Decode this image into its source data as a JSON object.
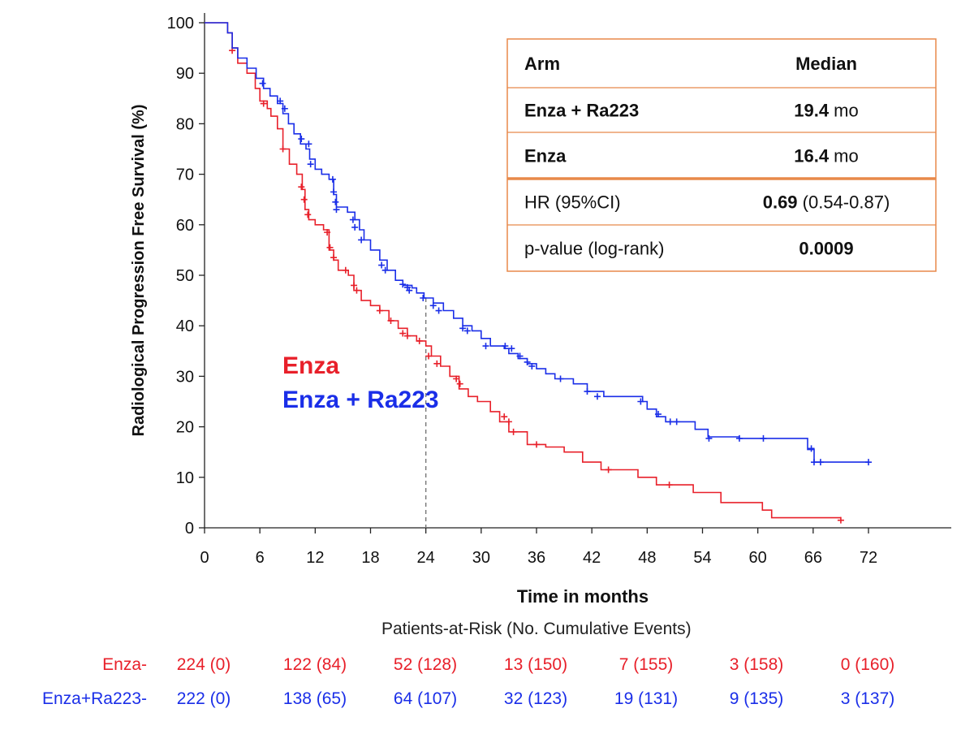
{
  "chart_data": {
    "type": "line",
    "subtype": "kaplan-meier",
    "ylabel": "Radiological Progression Free Survival (%)",
    "xlabel": "Time in months",
    "xlim": [
      0,
      72
    ],
    "ylim": [
      0,
      100
    ],
    "x_ticks": [
      "0",
      "6",
      "12",
      "18",
      "24",
      "30",
      "36",
      "42",
      "48",
      "54",
      "60",
      "66",
      "72"
    ],
    "y_ticks": [
      "0",
      "10",
      "20",
      "30",
      "40",
      "50",
      "60",
      "70",
      "80",
      "90",
      "100"
    ],
    "reference_line_x": 24,
    "series": [
      {
        "name": "Enza",
        "color": "#e8202a",
        "steps": [
          [
            0,
            100
          ],
          [
            2.5,
            98
          ],
          [
            3,
            95
          ],
          [
            3.6,
            92
          ],
          [
            4.6,
            90
          ],
          [
            5.5,
            87
          ],
          [
            6,
            84.5
          ],
          [
            6.8,
            83
          ],
          [
            7.2,
            81.5
          ],
          [
            7.9,
            79
          ],
          [
            8.5,
            75
          ],
          [
            9.2,
            72
          ],
          [
            10,
            70
          ],
          [
            10.6,
            67
          ],
          [
            10.9,
            63
          ],
          [
            11.3,
            61
          ],
          [
            12,
            60
          ],
          [
            12.9,
            59
          ],
          [
            13.5,
            55
          ],
          [
            14,
            53
          ],
          [
            14.5,
            51
          ],
          [
            15.6,
            50
          ],
          [
            16.2,
            47
          ],
          [
            17,
            45
          ],
          [
            18,
            44
          ],
          [
            19,
            43
          ],
          [
            20,
            41
          ],
          [
            21,
            39.5
          ],
          [
            22,
            38
          ],
          [
            23,
            37
          ],
          [
            24,
            36
          ],
          [
            24.6,
            34
          ],
          [
            25.6,
            32
          ],
          [
            26.6,
            30
          ],
          [
            27.6,
            27.5
          ],
          [
            28.6,
            26
          ],
          [
            29.6,
            25
          ],
          [
            31,
            23
          ],
          [
            32,
            21
          ],
          [
            33,
            19
          ],
          [
            35,
            16.5
          ],
          [
            37,
            16
          ],
          [
            39,
            15
          ],
          [
            41,
            13
          ],
          [
            43,
            11.5
          ],
          [
            47,
            10
          ],
          [
            49,
            8.5
          ],
          [
            53,
            7
          ],
          [
            56,
            5
          ],
          [
            60.5,
            3.5
          ],
          [
            61.5,
            2
          ],
          [
            69,
            2
          ]
        ],
        "censor_marks": [
          [
            3,
            94.5
          ],
          [
            6.4,
            84
          ],
          [
            8.5,
            75
          ],
          [
            10.5,
            67.5
          ],
          [
            10.8,
            65
          ],
          [
            11.2,
            62
          ],
          [
            13.3,
            58.5
          ],
          [
            13.6,
            55.5
          ],
          [
            14,
            53.5
          ],
          [
            15.3,
            51
          ],
          [
            16.2,
            48
          ],
          [
            16.5,
            47
          ],
          [
            19,
            43
          ],
          [
            20.2,
            41
          ],
          [
            21.5,
            38.5
          ],
          [
            22,
            38
          ],
          [
            23.3,
            37
          ],
          [
            24.3,
            34
          ],
          [
            25.2,
            32.5
          ],
          [
            27.3,
            29.5
          ],
          [
            27.7,
            28.5
          ],
          [
            32.5,
            22
          ],
          [
            33,
            21
          ],
          [
            33.5,
            19
          ],
          [
            36,
            16.5
          ],
          [
            43.8,
            11.5
          ],
          [
            50.4,
            8.5
          ],
          [
            69,
            1.5
          ]
        ]
      },
      {
        "name": "Enza + Ra223",
        "color": "#1a2ee8",
        "steps": [
          [
            0,
            100
          ],
          [
            2.5,
            98
          ],
          [
            3,
            95
          ],
          [
            3.6,
            93
          ],
          [
            4.6,
            91
          ],
          [
            5.6,
            89
          ],
          [
            6.4,
            87
          ],
          [
            7.1,
            85.5
          ],
          [
            7.9,
            84
          ],
          [
            8.5,
            82
          ],
          [
            9.1,
            80
          ],
          [
            9.7,
            78
          ],
          [
            10.4,
            76
          ],
          [
            11,
            75
          ],
          [
            11.4,
            73
          ],
          [
            12,
            71
          ],
          [
            12.7,
            70
          ],
          [
            13.5,
            69
          ],
          [
            14,
            66
          ],
          [
            14.3,
            63.5
          ],
          [
            15.5,
            62.5
          ],
          [
            16.3,
            61
          ],
          [
            16.8,
            59
          ],
          [
            17.3,
            57
          ],
          [
            18,
            55
          ],
          [
            19,
            53
          ],
          [
            19.8,
            51
          ],
          [
            20.7,
            49
          ],
          [
            21.5,
            48
          ],
          [
            22.5,
            47.5
          ],
          [
            23,
            46.5
          ],
          [
            23.8,
            45.5
          ],
          [
            24.8,
            44.5
          ],
          [
            25.9,
            43
          ],
          [
            27,
            41.5
          ],
          [
            28,
            40
          ],
          [
            29,
            39
          ],
          [
            30,
            37.5
          ],
          [
            31,
            36
          ],
          [
            32.5,
            35.5
          ],
          [
            33,
            34.5
          ],
          [
            34,
            33.5
          ],
          [
            35,
            32.5
          ],
          [
            36,
            31.5
          ],
          [
            37,
            30.5
          ],
          [
            38,
            29.5
          ],
          [
            40,
            28.5
          ],
          [
            41.5,
            27
          ],
          [
            43.3,
            26
          ],
          [
            47.5,
            25
          ],
          [
            48,
            23.5
          ],
          [
            49,
            22
          ],
          [
            50,
            21
          ],
          [
            53.2,
            19.5
          ],
          [
            54.6,
            18
          ],
          [
            58,
            17.7
          ],
          [
            65.4,
            15.5
          ],
          [
            66.1,
            13
          ],
          [
            72,
            13
          ]
        ],
        "censor_marks": [
          [
            6.3,
            88
          ],
          [
            8.2,
            84.5
          ],
          [
            8.7,
            83
          ],
          [
            10.5,
            77
          ],
          [
            11.3,
            76
          ],
          [
            11.5,
            72
          ],
          [
            13.9,
            69
          ],
          [
            14,
            66.5
          ],
          [
            14.2,
            64.5
          ],
          [
            14.3,
            63
          ],
          [
            16.1,
            61
          ],
          [
            16.3,
            59.5
          ],
          [
            17,
            57
          ],
          [
            19.2,
            52
          ],
          [
            19.6,
            51
          ],
          [
            21.5,
            48.2
          ],
          [
            22,
            47.6
          ],
          [
            22.2,
            47
          ],
          [
            23.7,
            45.5
          ],
          [
            24.8,
            44
          ],
          [
            25.4,
            43
          ],
          [
            28,
            39.5
          ],
          [
            28.5,
            39
          ],
          [
            30.5,
            36
          ],
          [
            32.6,
            36
          ],
          [
            33.3,
            35.5
          ],
          [
            34.2,
            34
          ],
          [
            35,
            32.8
          ],
          [
            35.5,
            32
          ],
          [
            38.6,
            29.5
          ],
          [
            41.5,
            27
          ],
          [
            42.6,
            26
          ],
          [
            47.3,
            25
          ],
          [
            49.2,
            22.5
          ],
          [
            50.5,
            21
          ],
          [
            51.2,
            21
          ],
          [
            54.7,
            17.7
          ],
          [
            58,
            17.7
          ],
          [
            60.6,
            17.7
          ],
          [
            65.8,
            15.7
          ],
          [
            66.1,
            13
          ],
          [
            66.8,
            13
          ],
          [
            72,
            13
          ]
        ]
      }
    ],
    "legend": {
      "items": [
        "Enza",
        "Enza + Ra223"
      ],
      "placement": "center-left"
    },
    "table": {
      "rows": [
        {
          "col1": "Arm",
          "col2_bold": "Median",
          "col2_rest": "",
          "row_bold": true
        },
        {
          "col1": "Enza + Ra223",
          "col2_bold": "19.4",
          "col2_rest": " mo",
          "row_bold": true
        },
        {
          "col1": "Enza",
          "col2_bold": "16.4",
          "col2_rest": " mo",
          "row_bold": true
        },
        {
          "col1": "HR (95%CI)",
          "col2_bold": "0.69",
          "col2_rest": " (0.54-0.87)",
          "row_bold": false
        },
        {
          "col1": "p-value (log-rank)",
          "col2_bold": "0.0009",
          "col2_rest": "",
          "row_bold": false
        }
      ],
      "border_color": "#e8894a"
    },
    "risk_table": {
      "title": "Patients-at-Risk (No. Cumulative Events)",
      "rows": [
        {
          "label": "Enza-",
          "color": "#e8202a",
          "values": [
            "224 (0)",
            "122 (84)",
            "52 (128)",
            "13 (150)",
            "7 (155)",
            "3 (158)",
            "0 (160)"
          ]
        },
        {
          "label": "Enza+Ra223-",
          "color": "#1a2ee8",
          "values": [
            "222 (0)",
            "138 (65)",
            "64 (107)",
            "32 (123)",
            "19 (131)",
            "9 (135)",
            "3 (137)"
          ]
        }
      ]
    }
  }
}
